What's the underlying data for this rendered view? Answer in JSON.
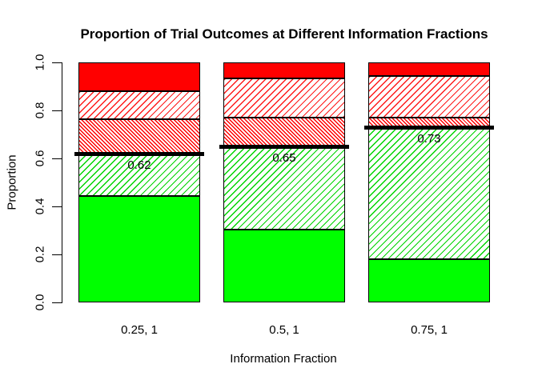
{
  "chart_data": {
    "type": "bar",
    "stacked": true,
    "title": "Proportion of Trial Outcomes at Different Information Fractions",
    "xlabel": "Information Fraction",
    "ylabel": "Proportion",
    "categories": [
      "0.25, 1",
      "0.5, 1",
      "0.75, 1"
    ],
    "ylim": [
      0,
      1
    ],
    "grid": false,
    "legend": "none",
    "y_ticks": [
      {
        "label": "0.0",
        "value": 0.0
      },
      {
        "label": "0.2",
        "value": 0.2
      },
      {
        "label": "0.4",
        "value": 0.4
      },
      {
        "label": "0.6",
        "value": 0.6
      },
      {
        "label": "0.8",
        "value": 0.8
      },
      {
        "label": "1.0",
        "value": 1.0
      }
    ],
    "series": [
      {
        "name": "solid-green-outcome",
        "pattern": "solid",
        "color": "#00FF00",
        "values": [
          0.445,
          0.305,
          0.18
        ]
      },
      {
        "name": "hatched-green-outcome",
        "pattern": "hatch",
        "color": "#00D400",
        "values": [
          0.175,
          0.345,
          0.55
        ]
      },
      {
        "name": "dense-hatched-red-outcome",
        "pattern": "hatch-dense",
        "color": "#FF0000",
        "values": [
          0.145,
          0.12,
          0.04
        ]
      },
      {
        "name": "hatched-red-outcome",
        "pattern": "hatch",
        "color": "#FF0000",
        "values": [
          0.115,
          0.165,
          0.175
        ]
      },
      {
        "name": "solid-red-outcome",
        "pattern": "solid",
        "color": "#FF0000",
        "values": [
          0.12,
          0.065,
          0.055
        ]
      }
    ],
    "threshold_lines": [
      {
        "category": "0.25, 1",
        "label": "0.62",
        "value": 0.62
      },
      {
        "category": "0.5, 1",
        "label": "0.65",
        "value": 0.65
      },
      {
        "category": "0.75, 1",
        "label": "0.73",
        "value": 0.73
      }
    ],
    "colors": {
      "solid_green": "#00FF00",
      "solid_red": "#FF0000",
      "threshold_line": "#000000",
      "text": "#000000",
      "background": "#FFFFFF"
    }
  }
}
